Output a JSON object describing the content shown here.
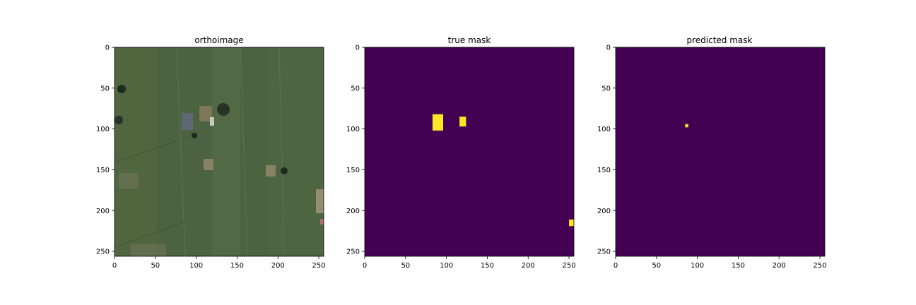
{
  "figure": {
    "panels": [
      {
        "id": "orthoimage",
        "title": "orthoimage",
        "kind": "image",
        "x_ticks": [
          "0",
          "50",
          "100",
          "150",
          "200",
          "250"
        ],
        "y_ticks": [
          "0",
          "50",
          "100",
          "150",
          "200",
          "250"
        ]
      },
      {
        "id": "true-mask",
        "title": "true mask",
        "kind": "mask",
        "x_ticks": [
          "0",
          "50",
          "100",
          "150",
          "200",
          "250"
        ],
        "y_ticks": [
          "0",
          "50",
          "100",
          "150",
          "200",
          "250"
        ],
        "background_color": "#440154",
        "foreground_color": "#fde725",
        "regions": [
          {
            "x0": 83,
            "x1": 96,
            "y0": 82,
            "y1": 102
          },
          {
            "x0": 116,
            "x1": 124,
            "y0": 85,
            "y1": 97
          },
          {
            "x0": 250,
            "x1": 256,
            "y0": 211,
            "y1": 219
          }
        ]
      },
      {
        "id": "predicted-mask",
        "title": "predicted mask",
        "kind": "mask",
        "x_ticks": [
          "0",
          "50",
          "100",
          "150",
          "200",
          "250"
        ],
        "y_ticks": [
          "0",
          "50",
          "100",
          "150",
          "200",
          "250"
        ],
        "background_color": "#440154",
        "foreground_color": "#fde725",
        "regions": [
          {
            "x0": 85,
            "x1": 89,
            "y0": 94,
            "y1": 98
          }
        ]
      }
    ],
    "image_colors": {
      "field": "#4b6340",
      "field_light": "#5a7048",
      "field_dark": "#3f5536",
      "bare_soil": "#8a7a5e",
      "roof": "#5f6675",
      "shadow": "#1e2a1e"
    }
  }
}
